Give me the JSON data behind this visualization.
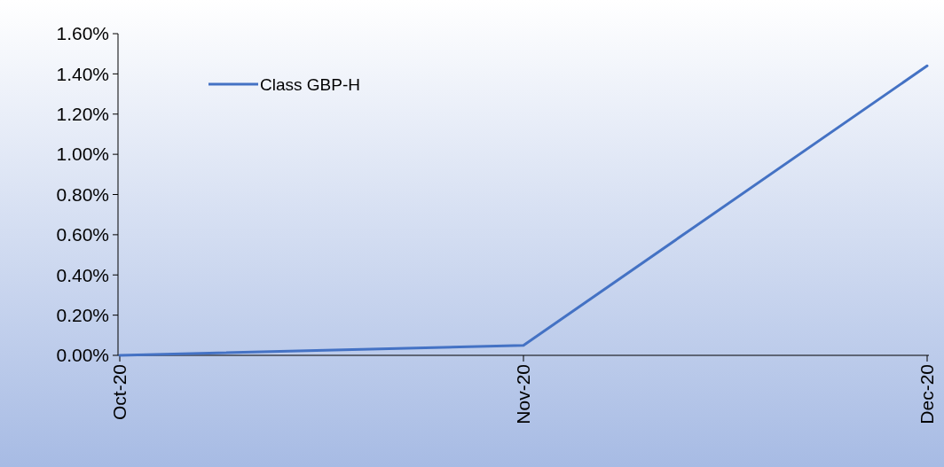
{
  "chart_data": {
    "type": "line",
    "categories": [
      "Oct-20",
      "Nov-20",
      "Dec-20"
    ],
    "series": [
      {
        "name": "Class GBP-H",
        "color": "#4472c4",
        "values": [
          0,
          0.05,
          1.44
        ]
      }
    ],
    "ylim": [
      0,
      1.6
    ],
    "yticks": [
      {
        "value": 0,
        "label": "0.00%"
      },
      {
        "value": 0.2,
        "label": "0.20%"
      },
      {
        "value": 0.4,
        "label": "0.40%"
      },
      {
        "value": 0.6,
        "label": "0.60%"
      },
      {
        "value": 0.8,
        "label": "0.80%"
      },
      {
        "value": 1,
        "label": "1.00%"
      },
      {
        "value": 1.2,
        "label": "1.20%"
      },
      {
        "value": 1.4,
        "label": "1.40%"
      },
      {
        "value": 1.6,
        "label": "1.60%"
      }
    ],
    "legend": "top left",
    "grid": false,
    "marker": "none",
    "line_style": "solid"
  }
}
